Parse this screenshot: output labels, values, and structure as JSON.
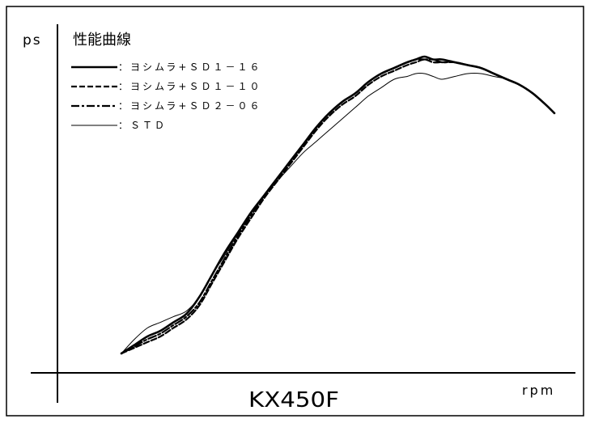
{
  "chart_data": {
    "type": "line",
    "title": "性能曲線",
    "subtitle": "KX450F",
    "xlabel": "rpm",
    "ylabel": "ps",
    "x_unit": "rpm",
    "y_unit": "ps",
    "axis_ticks": "none",
    "grid": false,
    "legend_position": "top-left",
    "xlim": [
      0,
      100
    ],
    "ylim": [
      0,
      100
    ],
    "series": [
      {
        "name": "：ヨシムラ+ＳＤ１－１６",
        "style": "solid-thick",
        "x": [
          0,
          3,
          6,
          9,
          12,
          15,
          18,
          21,
          24,
          27,
          30,
          33,
          36,
          39,
          42,
          45,
          48,
          51,
          54,
          57,
          60,
          63,
          66,
          68,
          70,
          72,
          74,
          77,
          80,
          83,
          86,
          89,
          92,
          95,
          98,
          100
        ],
        "values": [
          0,
          3,
          6,
          8,
          11,
          14,
          20,
          28,
          36,
          43,
          50,
          56,
          62,
          68,
          74,
          80,
          85,
          89,
          92,
          96,
          99,
          101,
          103,
          104,
          105,
          104,
          104,
          103,
          102,
          101,
          99,
          97,
          95,
          92,
          88,
          85
        ]
      },
      {
        "name": "：ヨシムラ+ＳＤ１－１０",
        "style": "dashed",
        "x": [
          0,
          3,
          6,
          9,
          12,
          15,
          18,
          21,
          24,
          27,
          30,
          33,
          36,
          39,
          42,
          45,
          48,
          51,
          54,
          57,
          60,
          63,
          66,
          68,
          70,
          72,
          74,
          77,
          80,
          83,
          86,
          89,
          92,
          95,
          98,
          100
        ],
        "values": [
          0,
          2,
          4,
          6,
          9,
          12,
          17,
          25,
          33,
          41,
          48,
          55,
          61,
          67,
          73,
          79,
          84,
          88,
          91,
          95,
          98,
          100,
          102,
          103,
          104,
          103,
          103,
          103,
          102,
          101,
          99,
          97,
          95,
          92,
          88,
          85
        ]
      },
      {
        "name": "：ヨシムラ+ＳＤ２－０６",
        "style": "dash-dot",
        "x": [
          0,
          3,
          6,
          9,
          12,
          15,
          18,
          21,
          24,
          27,
          30,
          33,
          36,
          39,
          42,
          45,
          48,
          51,
          54,
          57,
          60,
          63,
          66,
          68,
          70,
          72,
          74,
          77,
          80,
          83,
          86,
          89,
          92,
          95,
          98,
          100
        ],
        "values": [
          0,
          2.5,
          5,
          7,
          10,
          13,
          18,
          26,
          34,
          42,
          49,
          56,
          62,
          68,
          74,
          80,
          85,
          89,
          92,
          96,
          99,
          101,
          103,
          104,
          104,
          104,
          103,
          103,
          102,
          101,
          99,
          97,
          95,
          92,
          88,
          85
        ]
      },
      {
        "name": "：ＳＴＤ",
        "style": "solid-thin",
        "x": [
          0,
          3,
          6,
          9,
          12,
          15,
          18,
          21,
          24,
          27,
          30,
          33,
          36,
          39,
          42,
          45,
          48,
          51,
          54,
          57,
          60,
          63,
          66,
          68,
          70,
          72,
          74,
          77,
          80,
          83,
          86,
          89,
          92,
          95,
          98,
          100
        ],
        "values": [
          0,
          5,
          9,
          11,
          13,
          15,
          20,
          28,
          35,
          43,
          50,
          56,
          61,
          66,
          71,
          75,
          79,
          83,
          87,
          91,
          94,
          97,
          98,
          99,
          99,
          98,
          97,
          98,
          99,
          99,
          98,
          97,
          95,
          92,
          88,
          85
        ]
      }
    ]
  }
}
